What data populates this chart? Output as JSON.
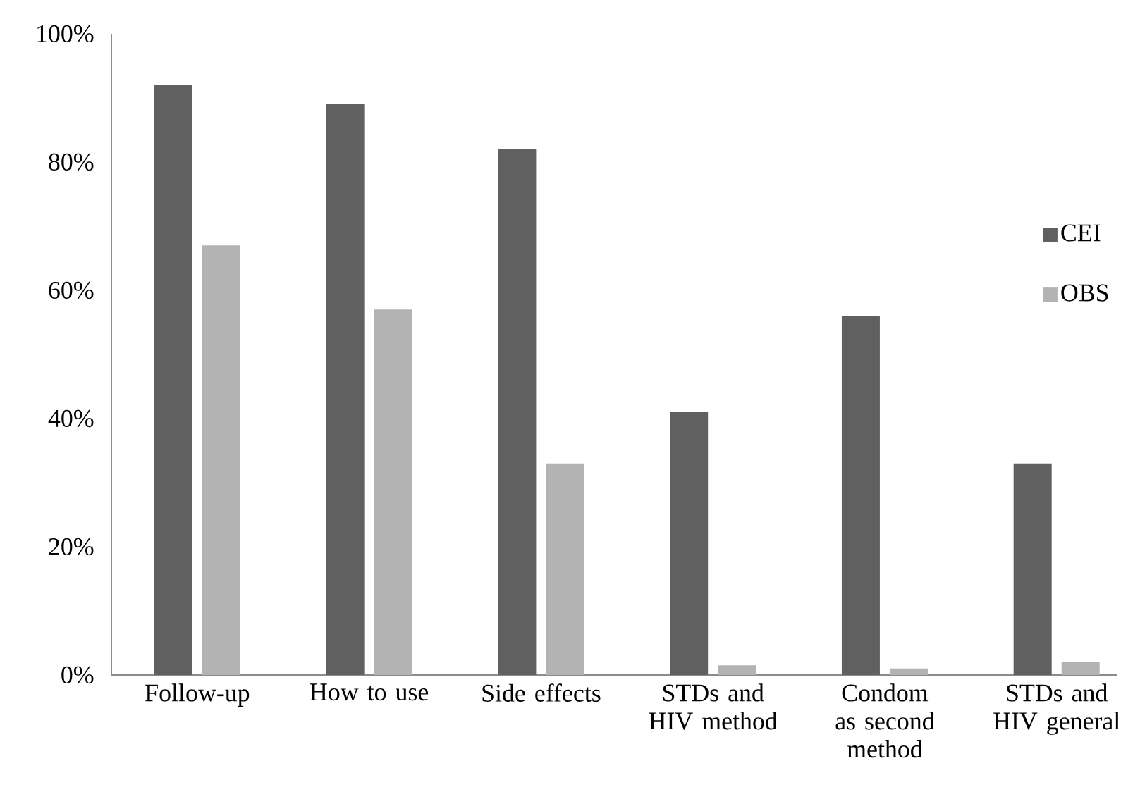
{
  "chart_data": {
    "type": "bar",
    "categories": [
      "Follow-up",
      "How to use",
      "Side effects",
      "STDs and HIV method",
      "Condom as second method",
      "STDs and HIV general"
    ],
    "series": [
      {
        "name": "CEI",
        "color": "#606060",
        "values": [
          92,
          89,
          82,
          41,
          56,
          33
        ]
      },
      {
        "name": "OBS",
        "color": "#b3b3b3",
        "values": [
          67,
          57,
          33,
          1.5,
          1,
          2
        ]
      }
    ],
    "ylim": [
      0,
      100
    ],
    "yticks": [
      {
        "value": 0,
        "label": "0%"
      },
      {
        "value": 20,
        "label": "20%"
      },
      {
        "value": 40,
        "label": "40%"
      },
      {
        "value": 60,
        "label": "60%"
      },
      {
        "value": 80,
        "label": "80%"
      },
      {
        "value": 100,
        "label": "100%"
      }
    ],
    "grid": false,
    "legend": "right"
  }
}
